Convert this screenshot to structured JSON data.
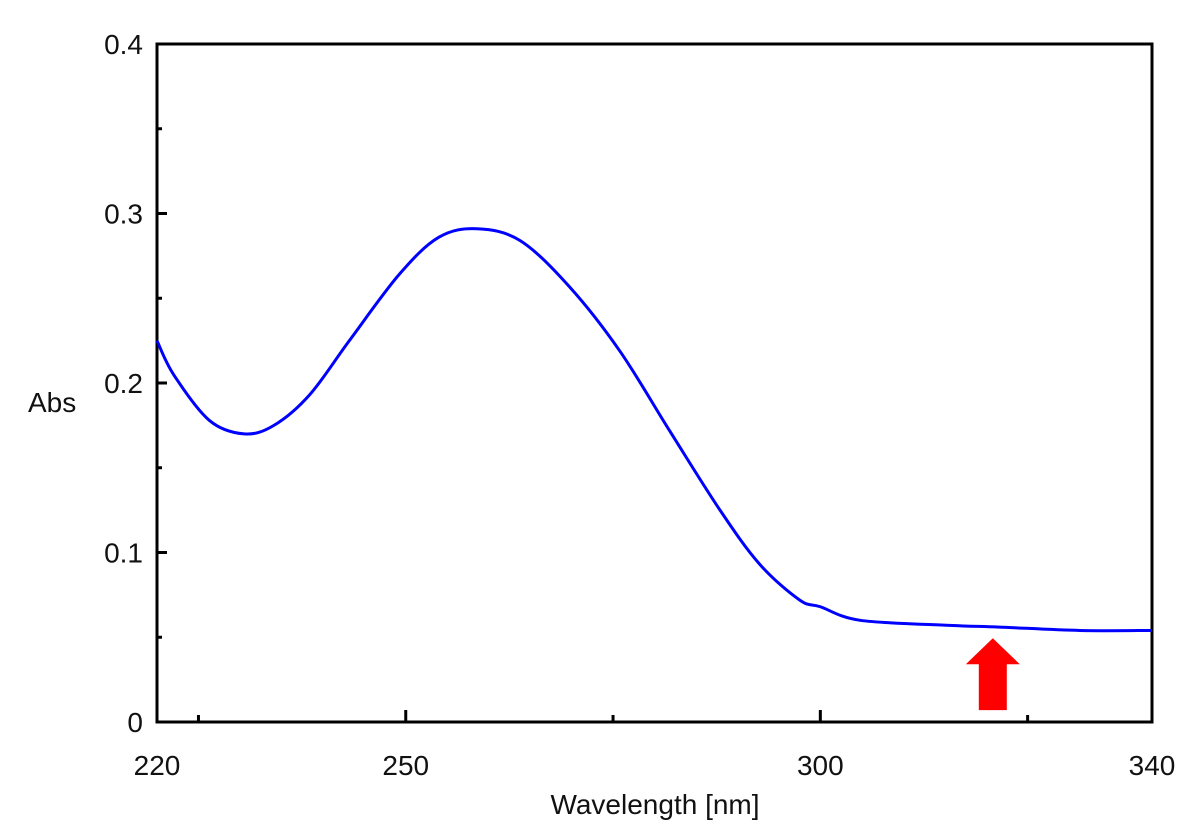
{
  "chart_data": {
    "type": "line",
    "title": "",
    "xlabel": "Wavelength [nm]",
    "ylabel": "Abs",
    "xlim": [
      220,
      340
    ],
    "ylim": [
      0,
      0.4
    ],
    "x_ticks": [
      220,
      250,
      300,
      340
    ],
    "x_tick_labels": [
      "220",
      "250",
      "300",
      "340"
    ],
    "x_minor_ticks": [
      225,
      275,
      325
    ],
    "y_ticks": [
      0,
      0.1,
      0.2,
      0.3,
      0.4
    ],
    "y_tick_labels": [
      "0",
      "0.1",
      "0.2",
      "0.3",
      "0.4"
    ],
    "y_minor_ticks": [
      0.05,
      0.15,
      0.25,
      0.35
    ],
    "grid": false,
    "series": [
      {
        "color": "#0000ff",
        "x": [
          220,
          222,
          226.3,
          230.5,
          234.1,
          238.4,
          243.2,
          249.2,
          254,
          258.6,
          263.8,
          269.7,
          275.8,
          281.8,
          287.9,
          292.7,
          297.5,
          300,
          304.8,
          315.6,
          321.6,
          331.3,
          340
        ],
        "y": [
          0.225,
          0.205,
          0.178,
          0.17,
          0.175,
          0.193,
          0.225,
          0.264,
          0.286,
          0.291,
          0.284,
          0.257,
          0.219,
          0.172,
          0.125,
          0.093,
          0.072,
          0.068,
          0.06,
          0.057,
          0.056,
          0.054,
          0.054
        ]
      }
    ],
    "annotations": [
      {
        "type": "arrow",
        "direction": "up",
        "color": "#ff0000",
        "x": 320.8,
        "y_tip": 0.05,
        "y_base": 0.007
      }
    ]
  }
}
